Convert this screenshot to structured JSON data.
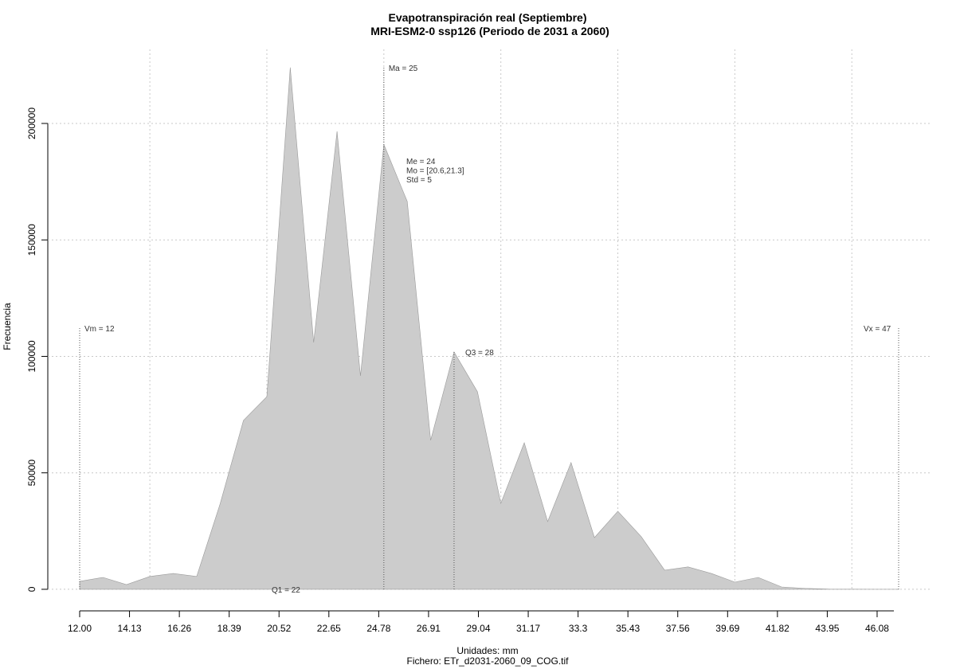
{
  "chart_data": {
    "type": "area",
    "title": "Evapotranspiración real (Septiembre)",
    "subtitle": "MRI-ESM2-0 ssp126 (Periodo de 2031 a 2060)",
    "x_label": "Unidades: mm",
    "caption": "Fichero: ETr_d2031-2060_09_COG.tif",
    "y_label": "Frecuencia",
    "x": [
      12,
      13,
      14,
      15,
      16,
      17,
      18,
      19,
      20,
      21,
      22,
      23,
      24,
      25,
      26,
      27,
      28,
      29,
      30,
      31,
      32,
      33,
      34,
      35,
      36,
      37,
      38,
      39,
      40,
      41,
      42,
      43,
      44,
      45,
      46,
      47
    ],
    "values": [
      3400,
      5100,
      2000,
      5500,
      6800,
      5500,
      36600,
      72500,
      82700,
      224000,
      106000,
      196600,
      91600,
      191000,
      166500,
      64000,
      101900,
      84800,
      36900,
      62900,
      29100,
      54400,
      22200,
      33500,
      22600,
      8200,
      9600,
      6800,
      3100,
      5100,
      1000,
      400,
      100,
      50,
      20,
      10
    ],
    "color": "#cccccc",
    "xlim": [
      12,
      47
    ],
    "ylim": [
      -9600,
      231800
    ],
    "xticks": [
      {
        "value": 12,
        "label": "12.00"
      },
      14.13,
      16.26,
      18.39,
      20.52,
      22.65,
      24.78,
      26.91,
      29.04,
      31.17,
      33.3,
      35.43,
      37.56,
      39.69,
      41.82,
      43.95,
      46.08
    ],
    "yticks": [
      0,
      50000,
      100000,
      150000,
      200000
    ],
    "xgrid": [
      15,
      20,
      25,
      30,
      35,
      40,
      45
    ],
    "grid": true,
    "vlines": [
      {
        "value": 12,
        "label": "Vm = 12"
      },
      {
        "value": 25,
        "label": "Ma = 25"
      },
      {
        "value": 28,
        "label": "Q3 = 28"
      },
      {
        "value": 47,
        "label": "Vx = 47"
      }
    ],
    "stats": [
      "Me = 24",
      "Mo = [20.6,21.3]",
      "Std = 5"
    ],
    "q1_label": "Q1 = 22"
  }
}
